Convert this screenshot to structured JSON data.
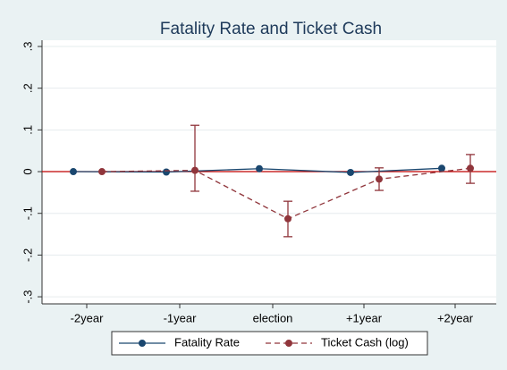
{
  "chart_data": {
    "type": "line",
    "title": "Fatality Rate and Ticket Cash",
    "categories": [
      "-2year",
      "-1year",
      "election",
      "+1year",
      "+2year"
    ],
    "series": [
      {
        "name": "Fatality Rate",
        "color": "#1a476f",
        "dash": false,
        "values": [
          0,
          -0.001,
          0.007,
          -0.002,
          0.008
        ]
      },
      {
        "name": "Ticket Cash (log)",
        "color": "#90353b",
        "dash": true,
        "values": [
          0,
          0.003,
          -0.113,
          -0.018,
          0.008
        ],
        "lower": [
          null,
          -0.047,
          -0.156,
          -0.045,
          -0.028
        ],
        "upper": [
          null,
          0.111,
          -0.071,
          0.009,
          0.041
        ]
      }
    ],
    "ylim": [
      -0.317,
      0.315
    ],
    "yticks": [
      {
        "value": -0.3,
        "label": "-.3"
      },
      {
        "value": -0.2,
        "label": "-.2"
      },
      {
        "value": -0.1,
        "label": "-.1"
      },
      0,
      {
        "value": 0.1,
        "label": ".1"
      },
      {
        "value": 0.2,
        "label": ".2"
      },
      {
        "value": 0.3,
        "label": ".3"
      }
    ],
    "grid": true,
    "reference_line": {
      "value": 0,
      "color": "#c00000"
    },
    "legend": "bottom"
  }
}
